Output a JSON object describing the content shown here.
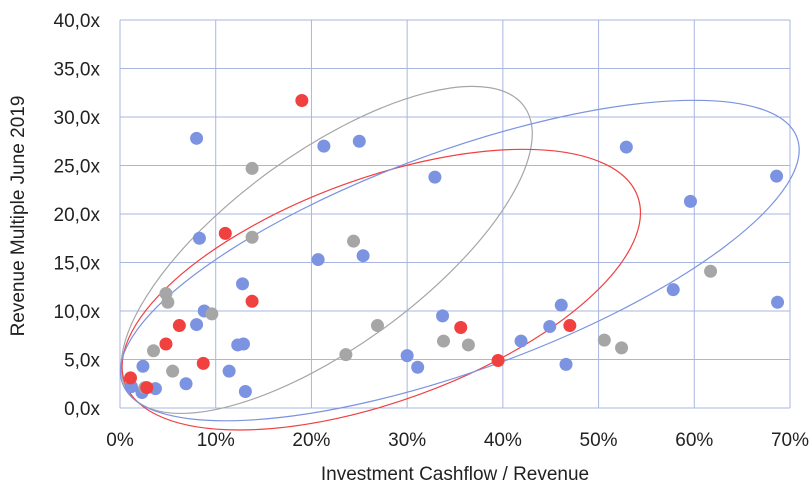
{
  "chart_data": {
    "type": "scatter",
    "xlabel": "Investment Cashflow / Revenue",
    "ylabel": "Revenue Multiple June 2019",
    "xlim": [
      0,
      70
    ],
    "ylim": [
      0,
      40
    ],
    "x_ticks": [
      0,
      10,
      20,
      30,
      40,
      50,
      60,
      70
    ],
    "y_ticks": [
      0,
      5,
      10,
      15,
      20,
      25,
      30,
      35,
      40
    ],
    "x_tick_labels": [
      "0%",
      "10%",
      "20%",
      "30%",
      "40%",
      "50%",
      "60%",
      "70%"
    ],
    "y_tick_labels": [
      "0,0x",
      "5,0x",
      "10,0x",
      "15,0x",
      "20,0x",
      "25,0x",
      "30,0x",
      "35,0x",
      "40,0x"
    ],
    "grid": true,
    "legend": "none",
    "colors": {
      "blue": "#7b93e0",
      "gray": "#a6a6a6",
      "red": "#f04040",
      "grid": "#a9b6e0"
    },
    "series": [
      {
        "color": "#7b93e0",
        "points": [
          [
            1.2,
            2.2
          ],
          [
            2.3,
            1.6
          ],
          [
            2.4,
            4.3
          ],
          [
            3.7,
            2.0
          ],
          [
            6.9,
            2.5
          ],
          [
            8.0,
            27.8
          ],
          [
            8.3,
            17.5
          ],
          [
            8.0,
            8.6
          ],
          [
            8.8,
            10.0
          ],
          [
            11.4,
            3.8
          ],
          [
            12.3,
            6.5
          ],
          [
            12.9,
            6.6
          ],
          [
            12.8,
            12.8
          ],
          [
            13.1,
            1.7
          ],
          [
            20.7,
            15.3
          ],
          [
            21.3,
            27.0
          ],
          [
            25.0,
            27.5
          ],
          [
            25.4,
            15.7
          ],
          [
            30.0,
            5.4
          ],
          [
            31.1,
            4.2
          ],
          [
            32.9,
            23.8
          ],
          [
            33.7,
            9.5
          ],
          [
            41.9,
            6.9
          ],
          [
            44.9,
            8.4
          ],
          [
            46.1,
            10.6
          ],
          [
            46.6,
            4.5
          ],
          [
            52.9,
            26.9
          ],
          [
            57.8,
            12.2
          ],
          [
            59.6,
            21.3
          ],
          [
            68.6,
            23.9
          ],
          [
            68.7,
            10.9
          ]
        ]
      },
      {
        "color": "#a6a6a6",
        "points": [
          [
            2.6,
            2.1
          ],
          [
            3.5,
            5.9
          ],
          [
            4.8,
            11.8
          ],
          [
            5.0,
            10.9
          ],
          [
            5.5,
            3.8
          ],
          [
            9.6,
            9.7
          ],
          [
            13.8,
            24.7
          ],
          [
            13.8,
            17.6
          ],
          [
            23.6,
            5.5
          ],
          [
            24.4,
            17.2
          ],
          [
            26.9,
            8.5
          ],
          [
            33.8,
            6.9
          ],
          [
            36.4,
            6.5
          ],
          [
            50.6,
            7.0
          ],
          [
            52.4,
            6.2
          ],
          [
            61.7,
            14.1
          ]
        ]
      },
      {
        "color": "#f04040",
        "points": [
          [
            1.1,
            3.1
          ],
          [
            2.8,
            2.1
          ],
          [
            4.8,
            6.6
          ],
          [
            6.2,
            8.5
          ],
          [
            8.7,
            4.6
          ],
          [
            11.0,
            18.0
          ],
          [
            13.8,
            11.0
          ],
          [
            19.0,
            31.7
          ],
          [
            35.6,
            8.3
          ],
          [
            39.5,
            4.9
          ],
          [
            47.0,
            8.5
          ]
        ]
      }
    ],
    "ellipses": [
      {
        "color": "#a6a6a6",
        "cx": 21.6,
        "cy": 16.3,
        "rx": 25.5,
        "ry": 10.0,
        "angle_deg": -36
      },
      {
        "color": "#f04040",
        "cx": 27.3,
        "cy": 12.2,
        "rx": 28.5,
        "ry": 11.5,
        "angle_deg": -20
      },
      {
        "color": "#7b93e0",
        "cx": 35.5,
        "cy": 15.2,
        "rx": 37.5,
        "ry": 11.3,
        "angle_deg": -20
      }
    ]
  }
}
